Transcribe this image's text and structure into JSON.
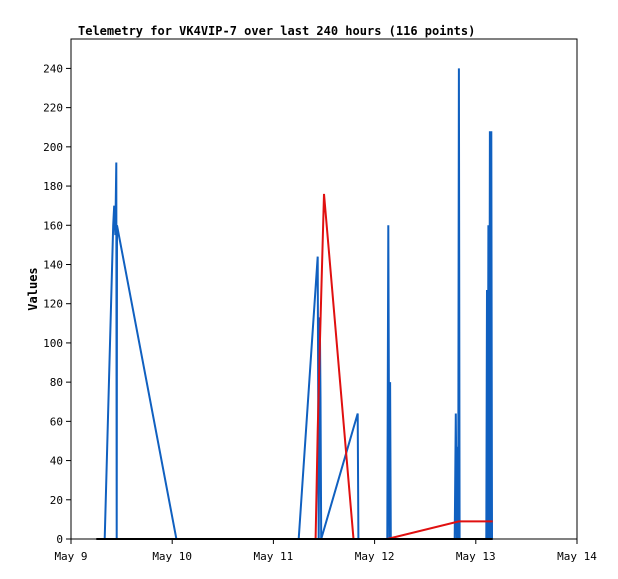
{
  "chart_data": {
    "type": "line",
    "title": "Telemetry for VK4VIP-7 over last 240 hours (116 points)",
    "xlabel": "",
    "ylabel": "Values",
    "x_tick_labels": [
      "May 9",
      "May 10",
      "May 11",
      "May 12",
      "May 13",
      "May 14"
    ],
    "y_tick_labels": [
      "0",
      "20",
      "40",
      "60",
      "80",
      "100",
      "120",
      "140",
      "160",
      "180",
      "200",
      "220",
      "240"
    ],
    "xlim": [
      "May 9",
      "May 14"
    ],
    "ylim": [
      0,
      255
    ],
    "grid": false,
    "legend": "none",
    "colors": {
      "series_blue": "#1060c0",
      "series_red": "#e01010",
      "series_black": "#000000"
    },
    "series": [
      {
        "color": "#1060c0",
        "points": [
          [
            "May 9 08:00",
            0
          ],
          [
            "May 9 10:00",
            160
          ],
          [
            "May 9 10:15",
            170
          ],
          [
            "May 9 10:30",
            155
          ],
          [
            "May 9 10:45",
            192
          ],
          [
            "May 9 10:50",
            0
          ],
          [
            "May 9 10:55",
            160
          ],
          [
            "May 10 01:00",
            0
          ],
          [
            "May 11 06:00",
            0
          ],
          [
            "May 11 10:30",
            144
          ],
          [
            "May 11 10:45",
            0
          ],
          [
            "May 11 11:00",
            113
          ],
          [
            "May 11 11:10",
            72
          ],
          [
            "May 11 11:20",
            0
          ],
          [
            "May 11 20:00",
            64
          ],
          [
            "May 11 20:10",
            0
          ],
          [
            "May 12 03:00",
            0
          ],
          [
            "May 12 03:15",
            160
          ],
          [
            "May 12 03:30",
            0
          ],
          [
            "May 12 03:40",
            80
          ],
          [
            "May 12 03:50",
            0
          ],
          [
            "May 12 19:00",
            0
          ],
          [
            "May 12 19:15",
            64
          ],
          [
            "May 12 19:30",
            0
          ],
          [
            "May 12 19:40",
            47
          ],
          [
            "May 12 19:50",
            0
          ],
          [
            "May 12 20:00",
            240
          ],
          [
            "May 12 20:10",
            0
          ],
          [
            "May 13 02:30",
            0
          ],
          [
            "May 13 02:40",
            127
          ],
          [
            "May 13 02:50",
            0
          ],
          [
            "May 13 03:00",
            160
          ],
          [
            "May 13 03:10",
            0
          ],
          [
            "May 13 03:20",
            208
          ],
          [
            "May 13 03:30",
            0
          ],
          [
            "May 13 03:40",
            208
          ],
          [
            "May 13 03:50",
            0
          ]
        ]
      },
      {
        "color": "#e01010",
        "points": [
          [
            "May 11 09:00",
            0
          ],
          [
            "May 11 10:00",
            0
          ],
          [
            "May 11 10:30",
            55
          ],
          [
            "May 11 11:00",
            98
          ],
          [
            "May 11 12:00",
            176
          ],
          [
            "May 11 19:00",
            0
          ],
          [
            "May 12 03:00",
            0
          ],
          [
            "May 12 20:00",
            9
          ],
          [
            "May 13 02:00",
            9
          ],
          [
            "May 13 04:00",
            9
          ]
        ]
      },
      {
        "color": "#000000",
        "points": [
          [
            "May 9 06:00",
            0
          ],
          [
            "May 13 04:00",
            0
          ]
        ]
      }
    ]
  }
}
